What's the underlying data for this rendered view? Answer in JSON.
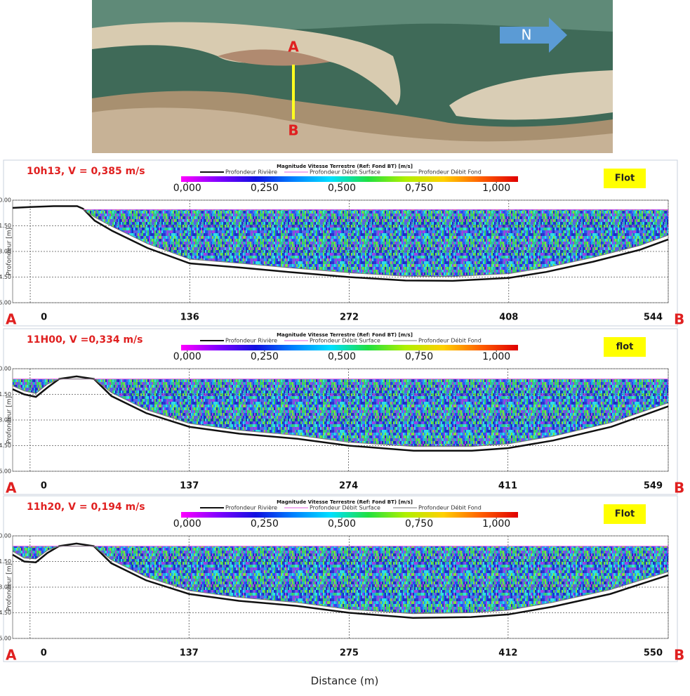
{
  "image": {
    "label_a": "A",
    "label_b": "B",
    "north": "N"
  },
  "x_axis_label": "Distance (m)",
  "chart_data": [
    {
      "type": "profile",
      "title": "10h13, V = 0,385 m/s",
      "badge": "Flot",
      "colorbar_title": "Magnitude Vitesse Terrestre (Ref: Fond BT) [m/s]",
      "clim": [
        -0.02,
        1.07
      ],
      "colormap": [
        "#ff00ff",
        "#8000ff",
        "#1010e0",
        "#0080ff",
        "#00e0ff",
        "#20e040",
        "#b0f000",
        "#ffd000",
        "#ff6000",
        "#e00000"
      ],
      "cticks": [
        {
          "value": 0,
          "label": "0,000"
        },
        {
          "value": 0.25,
          "label": "0,250"
        },
        {
          "value": 0.5,
          "label": "0,500"
        },
        {
          "value": 0.75,
          "label": "0,750"
        },
        {
          "value": 1,
          "label": "1,000"
        }
      ],
      "start_label": "A",
      "end_label": "B",
      "ylabel": "Profondeur [m]",
      "grid": true,
      "xlim": [
        -15,
        544
      ],
      "xticks": [
        0,
        136,
        272,
        408,
        544
      ],
      "ylim": [
        0,
        6
      ],
      "yticks": [
        {
          "value": 0,
          "label": "0.00"
        },
        {
          "value": 1.5,
          "label": "1.50"
        },
        {
          "value": 3,
          "label": "3.00"
        },
        {
          "value": 4.5,
          "label": "4.50"
        },
        {
          "value": 6,
          "label": "6.00"
        }
      ],
      "series": [
        {
          "name": "Profondeur Rivière",
          "color": "#111111",
          "x": [
            -15,
            0,
            20,
            40,
            45,
            55,
            70,
            100,
            136,
            180,
            220,
            272,
            320,
            360,
            408,
            440,
            480,
            520,
            544
          ],
          "values": [
            0.45,
            0.4,
            0.35,
            0.35,
            0.5,
            1.2,
            1.8,
            2.8,
            3.7,
            3.95,
            4.2,
            4.5,
            4.7,
            4.72,
            4.55,
            4.2,
            3.6,
            2.9,
            2.3
          ]
        },
        {
          "name": "Profondeur Débit Surface",
          "color": "#e060e0",
          "x": [
            45,
            544
          ],
          "values": [
            0.55,
            0.55
          ]
        },
        {
          "name": "Profondeur Débit Fond",
          "color": "#777777",
          "x": [
            45,
            55,
            70,
            100,
            136,
            180,
            220,
            272,
            320,
            360,
            408,
            440,
            480,
            520,
            544
          ],
          "values": [
            0.55,
            1.0,
            1.55,
            2.55,
            3.45,
            3.7,
            3.95,
            4.25,
            4.45,
            4.47,
            4.3,
            3.95,
            3.35,
            2.65,
            2.05
          ]
        }
      ]
    },
    {
      "type": "profile",
      "title": "11H00, V =0,334  m/s",
      "badge": "flot",
      "colorbar_title": "Magnitude Vitesse Terrestre (Ref: Fond BT) [m/s]",
      "clim": [
        -0.02,
        1.07
      ],
      "colormap": [
        "#ff00ff",
        "#8000ff",
        "#1010e0",
        "#0080ff",
        "#00e0ff",
        "#20e040",
        "#b0f000",
        "#ffd000",
        "#ff6000",
        "#e00000"
      ],
      "cticks": [
        {
          "value": 0,
          "label": "0,000"
        },
        {
          "value": 0.25,
          "label": "0,250"
        },
        {
          "value": 0.5,
          "label": "0,500"
        },
        {
          "value": 0.75,
          "label": "0,750"
        },
        {
          "value": 1,
          "label": "1,000"
        }
      ],
      "start_label": "A",
      "end_label": "B",
      "ylabel": "Profondeur [m]",
      "grid": true,
      "xlim": [
        -15,
        549
      ],
      "xticks": [
        0,
        137,
        274,
        411,
        549
      ],
      "ylim": [
        0,
        6
      ],
      "yticks": [
        {
          "value": 0,
          "label": "0.00"
        },
        {
          "value": 1.5,
          "label": "1.50"
        },
        {
          "value": 3,
          "label": "3.00"
        },
        {
          "value": 4.5,
          "label": "4.50"
        },
        {
          "value": 6,
          "label": "6.00"
        }
      ],
      "series": [
        {
          "name": "Profondeur Rivière",
          "color": "#111111",
          "x": [
            -15,
            -5,
            5,
            15,
            25,
            40,
            55,
            70,
            100,
            137,
            180,
            230,
            274,
            330,
            380,
            411,
            450,
            500,
            549
          ],
          "values": [
            1.2,
            1.5,
            1.65,
            1.1,
            0.6,
            0.45,
            0.6,
            1.6,
            2.6,
            3.4,
            3.8,
            4.1,
            4.5,
            4.8,
            4.8,
            4.65,
            4.2,
            3.4,
            2.2
          ]
        },
        {
          "name": "Profondeur Débit Surface",
          "color": "#e060e0",
          "x": [
            -15,
            549
          ],
          "values": [
            0.6,
            0.6
          ]
        },
        {
          "name": "Profondeur Débit Fond",
          "color": "#777777",
          "x": [
            -15,
            -5,
            5,
            15,
            25,
            40,
            55,
            70,
            100,
            137,
            180,
            230,
            274,
            330,
            380,
            411,
            450,
            500,
            549
          ],
          "values": [
            1.0,
            1.3,
            1.45,
            0.9,
            0.6,
            0.6,
            0.6,
            1.4,
            2.4,
            3.2,
            3.6,
            3.9,
            4.3,
            4.55,
            4.55,
            4.4,
            3.95,
            3.15,
            2.0
          ]
        }
      ]
    },
    {
      "type": "profile",
      "title": "11h20, V = 0,194 m/s",
      "badge": "Flot",
      "colorbar_title": "Magnitude Vitesse Terrestre (Ref: Fond BT) [m/s]",
      "clim": [
        -0.02,
        1.07
      ],
      "colormap": [
        "#ff00ff",
        "#8000ff",
        "#1010e0",
        "#0080ff",
        "#00e0ff",
        "#20e040",
        "#b0f000",
        "#ffd000",
        "#ff6000",
        "#e00000"
      ],
      "cticks": [
        {
          "value": 0,
          "label": "0,000"
        },
        {
          "value": 0.25,
          "label": "0,250"
        },
        {
          "value": 0.5,
          "label": "0,500"
        },
        {
          "value": 0.75,
          "label": "0,750"
        },
        {
          "value": 1,
          "label": "1,000"
        }
      ],
      "start_label": "A",
      "end_label": "B",
      "ylabel": "Profondeur [m]",
      "grid": true,
      "xlim": [
        -15,
        550
      ],
      "xticks": [
        0,
        137,
        275,
        412,
        550
      ],
      "ylim": [
        0,
        6
      ],
      "yticks": [
        {
          "value": 0,
          "label": "0.00"
        },
        {
          "value": 1.5,
          "label": "1.50"
        },
        {
          "value": 3,
          "label": "3.00"
        },
        {
          "value": 4.5,
          "label": "4.50"
        },
        {
          "value": 6,
          "label": "6.00"
        }
      ],
      "series": [
        {
          "name": "Profondeur Rivière",
          "color": "#111111",
          "x": [
            -15,
            -5,
            5,
            15,
            25,
            40,
            55,
            70,
            100,
            137,
            180,
            230,
            275,
            330,
            380,
            412,
            450,
            500,
            550
          ],
          "values": [
            1.1,
            1.5,
            1.55,
            1.0,
            0.6,
            0.45,
            0.6,
            1.6,
            2.6,
            3.4,
            3.8,
            4.1,
            4.5,
            4.8,
            4.75,
            4.6,
            4.15,
            3.4,
            2.3
          ]
        },
        {
          "name": "Profondeur Débit Surface",
          "color": "#e060e0",
          "x": [
            -15,
            550
          ],
          "values": [
            0.6,
            0.6
          ]
        },
        {
          "name": "Profondeur Débit Fond",
          "color": "#777777",
          "x": [
            -15,
            -5,
            5,
            15,
            25,
            40,
            55,
            70,
            100,
            137,
            180,
            230,
            275,
            330,
            380,
            412,
            450,
            500,
            550
          ],
          "values": [
            0.9,
            1.3,
            1.35,
            0.85,
            0.6,
            0.6,
            0.6,
            1.4,
            2.4,
            3.2,
            3.6,
            3.9,
            4.3,
            4.55,
            4.5,
            4.35,
            3.9,
            3.15,
            2.1
          ]
        }
      ]
    }
  ]
}
